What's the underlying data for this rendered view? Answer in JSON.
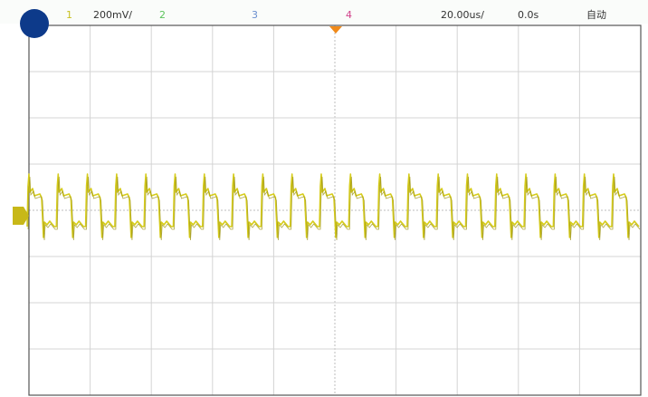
{
  "header": {
    "channel_1": "1",
    "channel_1_scale": "200mV/",
    "channel_2": "2",
    "channel_3": "3",
    "channel_4": "4",
    "timebase": "20.00us/",
    "time_offset": "0.0s",
    "trigger_mode": "自动"
  }
}
